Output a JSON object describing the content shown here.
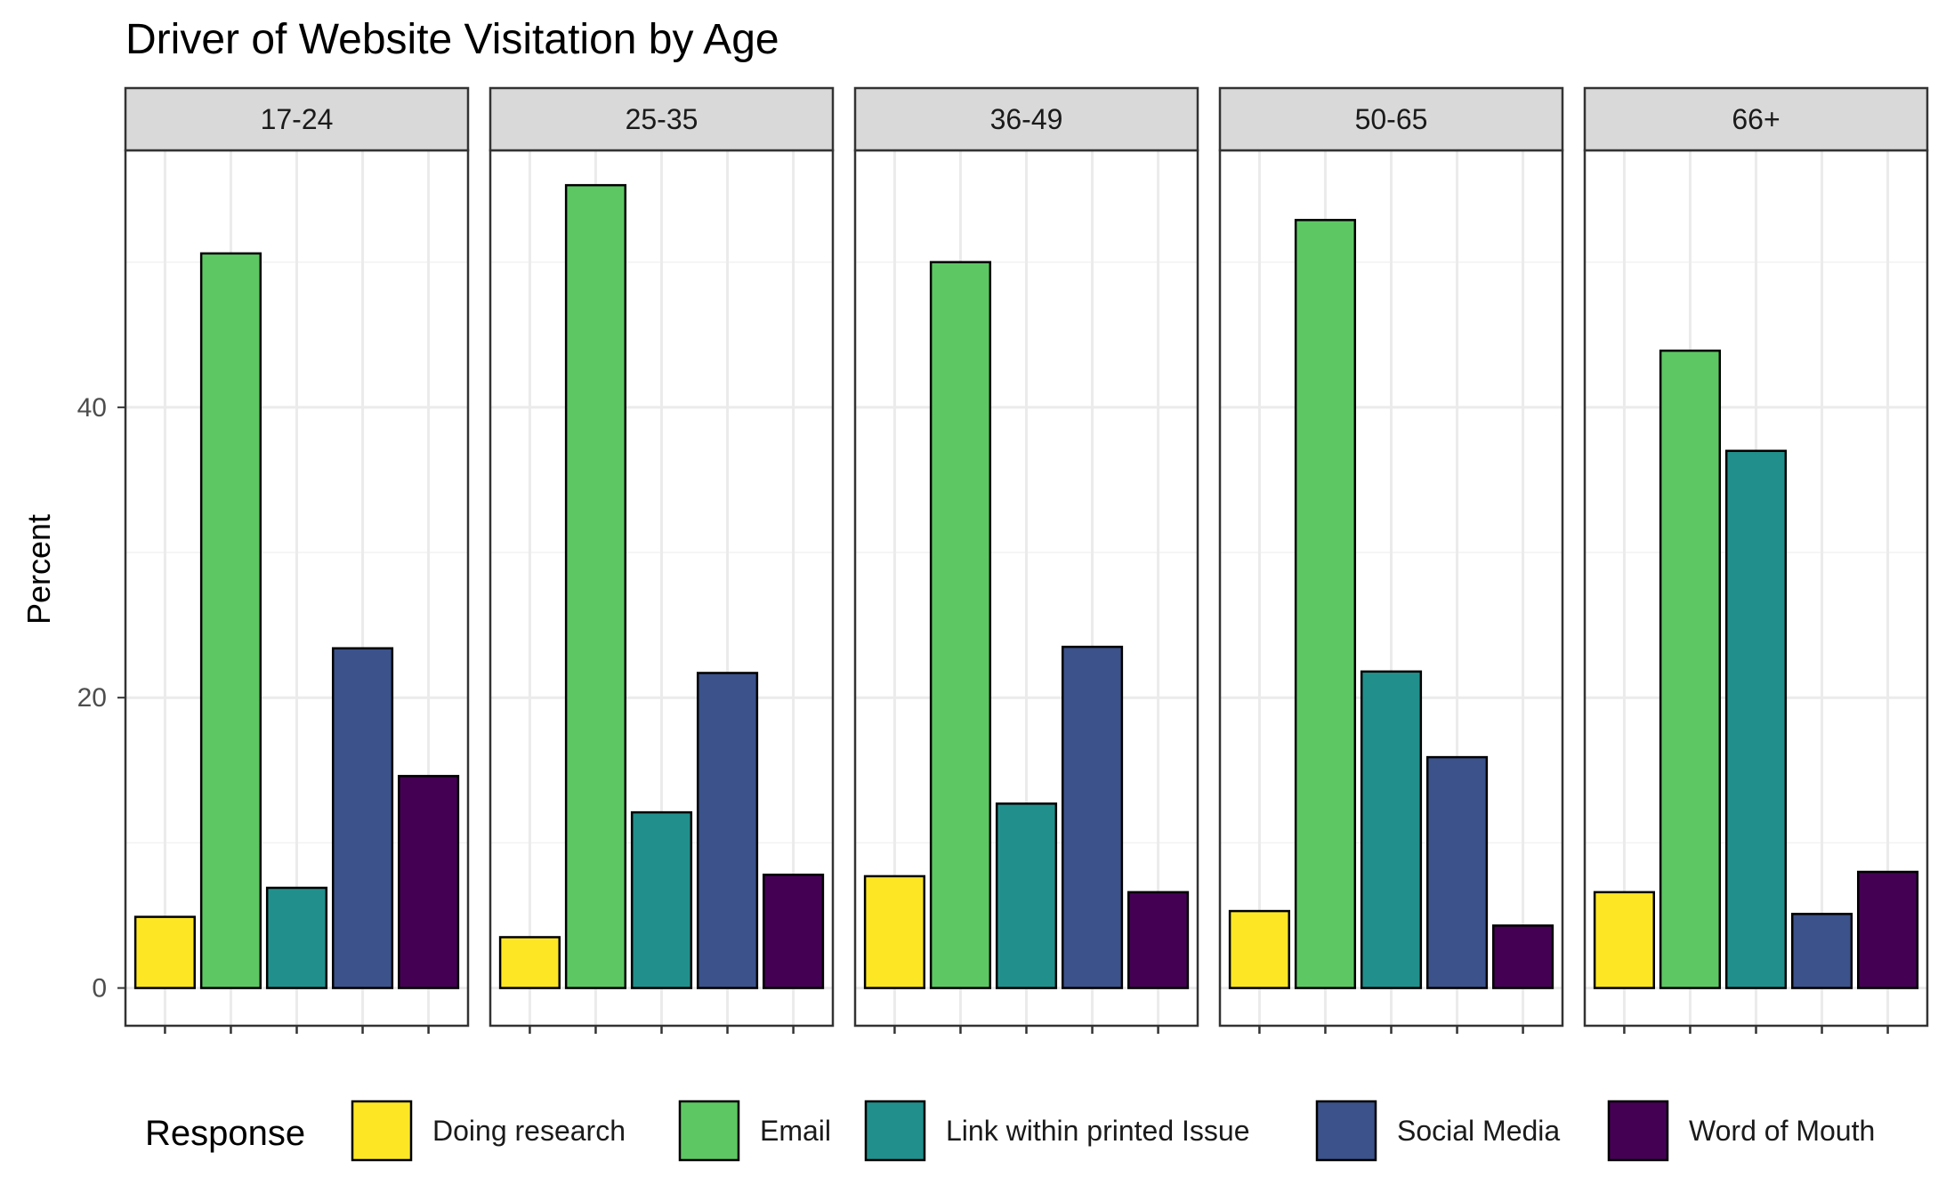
{
  "chart_data": {
    "type": "bar",
    "title": "Driver of Website Visitation by Age",
    "xlabel": "",
    "ylabel": "Percent",
    "ylim": [
      -2.6,
      57.7
    ],
    "yticks": [
      0,
      20,
      40
    ],
    "grid": true,
    "legend_position": "bottom",
    "legend_title": "Response",
    "categories": [
      "Doing research",
      "Email",
      "Link within printed Issue",
      "Social Media",
      "Word of Mouth"
    ],
    "colors": {
      "Doing research": "#FDE725",
      "Email": "#5DC863",
      "Link within printed Issue": "#21908C",
      "Social Media": "#3B528B",
      "Word of Mouth": "#440154"
    },
    "panels": [
      {
        "label": "17-24",
        "values": [
          4.9,
          50.6,
          6.9,
          23.4,
          14.6
        ]
      },
      {
        "label": "25-35",
        "values": [
          3.5,
          55.3,
          12.1,
          21.7,
          7.8
        ]
      },
      {
        "label": "36-49",
        "values": [
          7.7,
          50.0,
          12.7,
          23.5,
          6.6
        ]
      },
      {
        "label": "50-65",
        "values": [
          5.3,
          52.9,
          21.8,
          15.9,
          4.3
        ]
      },
      {
        "label": "66+",
        "values": [
          6.6,
          43.9,
          37.0,
          5.1,
          8.0
        ]
      }
    ]
  }
}
